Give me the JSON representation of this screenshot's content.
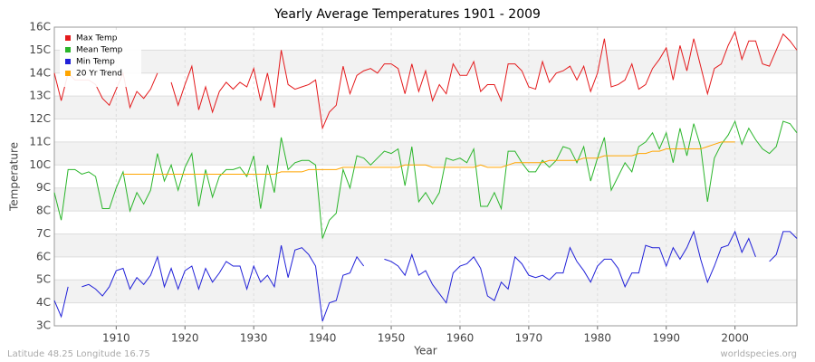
{
  "chart_data": {
    "type": "line",
    "title": "Yearly Average Temperatures 1901 - 2009",
    "x_label": "Year",
    "y_label": "Temperature",
    "footer_left": "Latitude 48.25 Longitude 16.75",
    "footer_right": "worldspecies.org",
    "legend": "top-left",
    "grid": true,
    "xlim": [
      1901,
      2009
    ],
    "xticks": [
      1910,
      1920,
      1930,
      1940,
      1950,
      1960,
      1970,
      1980,
      1990,
      2000
    ],
    "ylim": [
      3,
      16
    ],
    "yticks": [
      {
        "value": 3,
        "label": "3C"
      },
      {
        "value": 4,
        "label": "4C"
      },
      {
        "value": 5,
        "label": "5C"
      },
      {
        "value": 6,
        "label": "6C"
      },
      {
        "value": 7,
        "label": "7C"
      },
      {
        "value": 8,
        "label": "8C"
      },
      {
        "value": 9,
        "label": "9C"
      },
      {
        "value": 10,
        "label": "10C"
      },
      {
        "value": 11,
        "label": "11C"
      },
      {
        "value": 12,
        "label": "12C"
      },
      {
        "value": 13,
        "label": "13C"
      },
      {
        "value": 14,
        "label": "14C"
      },
      {
        "value": 15,
        "label": "15C"
      },
      {
        "value": 16,
        "label": "16C"
      }
    ],
    "x": [
      1901,
      1902,
      1903,
      1904,
      1905,
      1906,
      1907,
      1908,
      1909,
      1910,
      1911,
      1912,
      1913,
      1914,
      1915,
      1916,
      1917,
      1918,
      1919,
      1920,
      1921,
      1922,
      1923,
      1924,
      1925,
      1926,
      1927,
      1928,
      1929,
      1930,
      1931,
      1932,
      1933,
      1934,
      1935,
      1936,
      1937,
      1938,
      1939,
      1940,
      1941,
      1942,
      1943,
      1944,
      1945,
      1946,
      1947,
      1948,
      1949,
      1950,
      1951,
      1952,
      1953,
      1954,
      1955,
      1956,
      1957,
      1958,
      1959,
      1960,
      1961,
      1962,
      1963,
      1964,
      1965,
      1966,
      1967,
      1968,
      1969,
      1970,
      1971,
      1972,
      1973,
      1974,
      1975,
      1976,
      1977,
      1978,
      1979,
      1980,
      1981,
      1982,
      1983,
      1984,
      1985,
      1986,
      1987,
      1988,
      1989,
      1990,
      1991,
      1992,
      1993,
      1994,
      1995,
      1996,
      1997,
      1998,
      1999,
      2000,
      2001,
      2002,
      2003,
      2004,
      2005,
      2006,
      2007,
      2008,
      2009
    ],
    "series": [
      {
        "name": "Max Temp",
        "color": "#e41a1c",
        "values": [
          14.0,
          12.8,
          14.0,
          13.7,
          13.7,
          13.7,
          13.5,
          12.9,
          12.6,
          13.3,
          14.0,
          12.5,
          13.2,
          12.9,
          13.3,
          14.0,
          null,
          13.6,
          12.6,
          13.5,
          14.3,
          12.4,
          13.4,
          12.3,
          13.2,
          13.6,
          13.3,
          13.6,
          13.4,
          14.2,
          12.8,
          14.0,
          12.5,
          15.0,
          13.5,
          13.3,
          13.4,
          13.5,
          13.7,
          11.6,
          12.3,
          12.6,
          14.3,
          13.1,
          13.9,
          14.1,
          14.2,
          14.0,
          14.4,
          14.4,
          14.2,
          13.1,
          14.4,
          13.2,
          14.1,
          12.8,
          13.5,
          13.1,
          14.4,
          13.9,
          13.9,
          14.5,
          13.2,
          13.5,
          13.5,
          12.8,
          14.4,
          14.4,
          14.1,
          13.4,
          13.3,
          14.5,
          13.6,
          14.0,
          14.1,
          14.3,
          13.7,
          14.3,
          13.2,
          14.0,
          15.5,
          13.4,
          13.5,
          13.7,
          14.4,
          13.3,
          13.5,
          14.2,
          14.6,
          15.1,
          13.7,
          15.2,
          14.1,
          15.5,
          14.3,
          13.1,
          14.2,
          14.4,
          15.2,
          15.8,
          14.6,
          15.4,
          15.4,
          14.4,
          14.3,
          15.0,
          15.7,
          15.4,
          15.0
        ]
      },
      {
        "name": "Mean Temp",
        "color": "#2ab52a",
        "values": [
          8.8,
          7.6,
          9.8,
          9.8,
          9.6,
          9.7,
          9.5,
          8.1,
          8.1,
          9.0,
          9.7,
          8.0,
          8.8,
          8.3,
          8.9,
          10.5,
          9.3,
          10.0,
          8.9,
          9.9,
          10.5,
          8.2,
          9.8,
          8.6,
          9.5,
          9.8,
          9.8,
          9.9,
          9.5,
          10.4,
          8.1,
          10.0,
          8.8,
          11.2,
          9.8,
          10.1,
          10.2,
          10.2,
          10.0,
          6.8,
          7.6,
          7.9,
          9.8,
          9.0,
          10.4,
          10.3,
          10.0,
          10.3,
          10.6,
          10.5,
          10.7,
          9.1,
          10.8,
          8.4,
          8.8,
          8.3,
          8.8,
          10.3,
          10.2,
          10.3,
          10.1,
          10.7,
          8.2,
          8.2,
          8.8,
          8.1,
          10.6,
          10.6,
          10.1,
          9.7,
          9.7,
          10.2,
          9.9,
          10.2,
          10.8,
          10.7,
          10.1,
          10.8,
          9.3,
          10.3,
          11.2,
          8.9,
          9.5,
          10.1,
          9.7,
          10.8,
          11.0,
          11.4,
          10.7,
          11.4,
          10.1,
          11.6,
          10.4,
          11.8,
          10.8,
          8.4,
          10.3,
          10.9,
          11.3,
          11.9,
          10.9,
          11.6,
          11.1,
          10.7,
          10.5,
          10.8,
          11.9,
          11.8,
          11.4
        ]
      },
      {
        "name": "Min Temp",
        "color": "#2020d8",
        "values": [
          4.1,
          3.4,
          4.7,
          null,
          4.7,
          4.8,
          4.6,
          4.3,
          4.7,
          5.4,
          5.5,
          4.6,
          5.1,
          4.8,
          5.2,
          6.0,
          4.7,
          5.5,
          4.6,
          5.4,
          5.6,
          4.6,
          5.5,
          4.9,
          5.3,
          5.8,
          5.6,
          5.6,
          4.6,
          5.6,
          4.9,
          5.2,
          4.7,
          6.5,
          5.1,
          6.3,
          6.4,
          6.1,
          5.6,
          3.2,
          4.0,
          4.1,
          5.2,
          5.3,
          6.0,
          5.6,
          null,
          null,
          5.9,
          5.8,
          5.6,
          5.2,
          6.1,
          5.2,
          5.4,
          4.8,
          4.4,
          4.0,
          5.3,
          5.6,
          5.7,
          6.0,
          5.5,
          4.3,
          4.1,
          4.9,
          4.6,
          6.0,
          5.7,
          5.2,
          5.1,
          5.2,
          5.0,
          5.3,
          5.3,
          6.4,
          5.8,
          5.4,
          4.9,
          5.6,
          5.9,
          5.9,
          5.5,
          4.7,
          5.3,
          5.3,
          6.5,
          6.4,
          6.4,
          5.6,
          6.4,
          5.9,
          6.4,
          7.1,
          5.9,
          4.9,
          5.6,
          6.4,
          6.5,
          7.1,
          6.2,
          6.8,
          6.0,
          null,
          5.8,
          6.1,
          7.1,
          7.1,
          6.8
        ]
      },
      {
        "name": "20 Yr Trend",
        "color": "#ffa500",
        "values": [
          null,
          null,
          null,
          null,
          null,
          null,
          null,
          null,
          null,
          null,
          9.6,
          9.6,
          9.6,
          9.6,
          9.6,
          9.6,
          9.6,
          9.6,
          9.6,
          9.6,
          9.6,
          9.6,
          9.6,
          9.6,
          9.6,
          9.6,
          9.6,
          9.6,
          9.6,
          9.6,
          9.6,
          9.6,
          9.6,
          9.7,
          9.7,
          9.7,
          9.7,
          9.8,
          9.8,
          9.8,
          9.8,
          9.8,
          9.9,
          9.9,
          9.9,
          9.9,
          9.9,
          9.9,
          9.9,
          9.9,
          9.9,
          10.0,
          10.0,
          10.0,
          10.0,
          9.9,
          9.9,
          9.9,
          9.9,
          9.9,
          9.9,
          9.9,
          10.0,
          9.9,
          9.9,
          9.9,
          10.0,
          10.1,
          10.1,
          10.1,
          10.1,
          10.1,
          10.2,
          10.2,
          10.2,
          10.2,
          10.2,
          10.3,
          10.3,
          10.3,
          10.4,
          10.4,
          10.4,
          10.4,
          10.4,
          10.5,
          10.5,
          10.6,
          10.6,
          10.7,
          10.7,
          10.7,
          10.7,
          10.7,
          10.7,
          10.8,
          10.9,
          11.0,
          11.0,
          11.0,
          null,
          null,
          null,
          null,
          null,
          null,
          null,
          null,
          null
        ]
      }
    ]
  }
}
